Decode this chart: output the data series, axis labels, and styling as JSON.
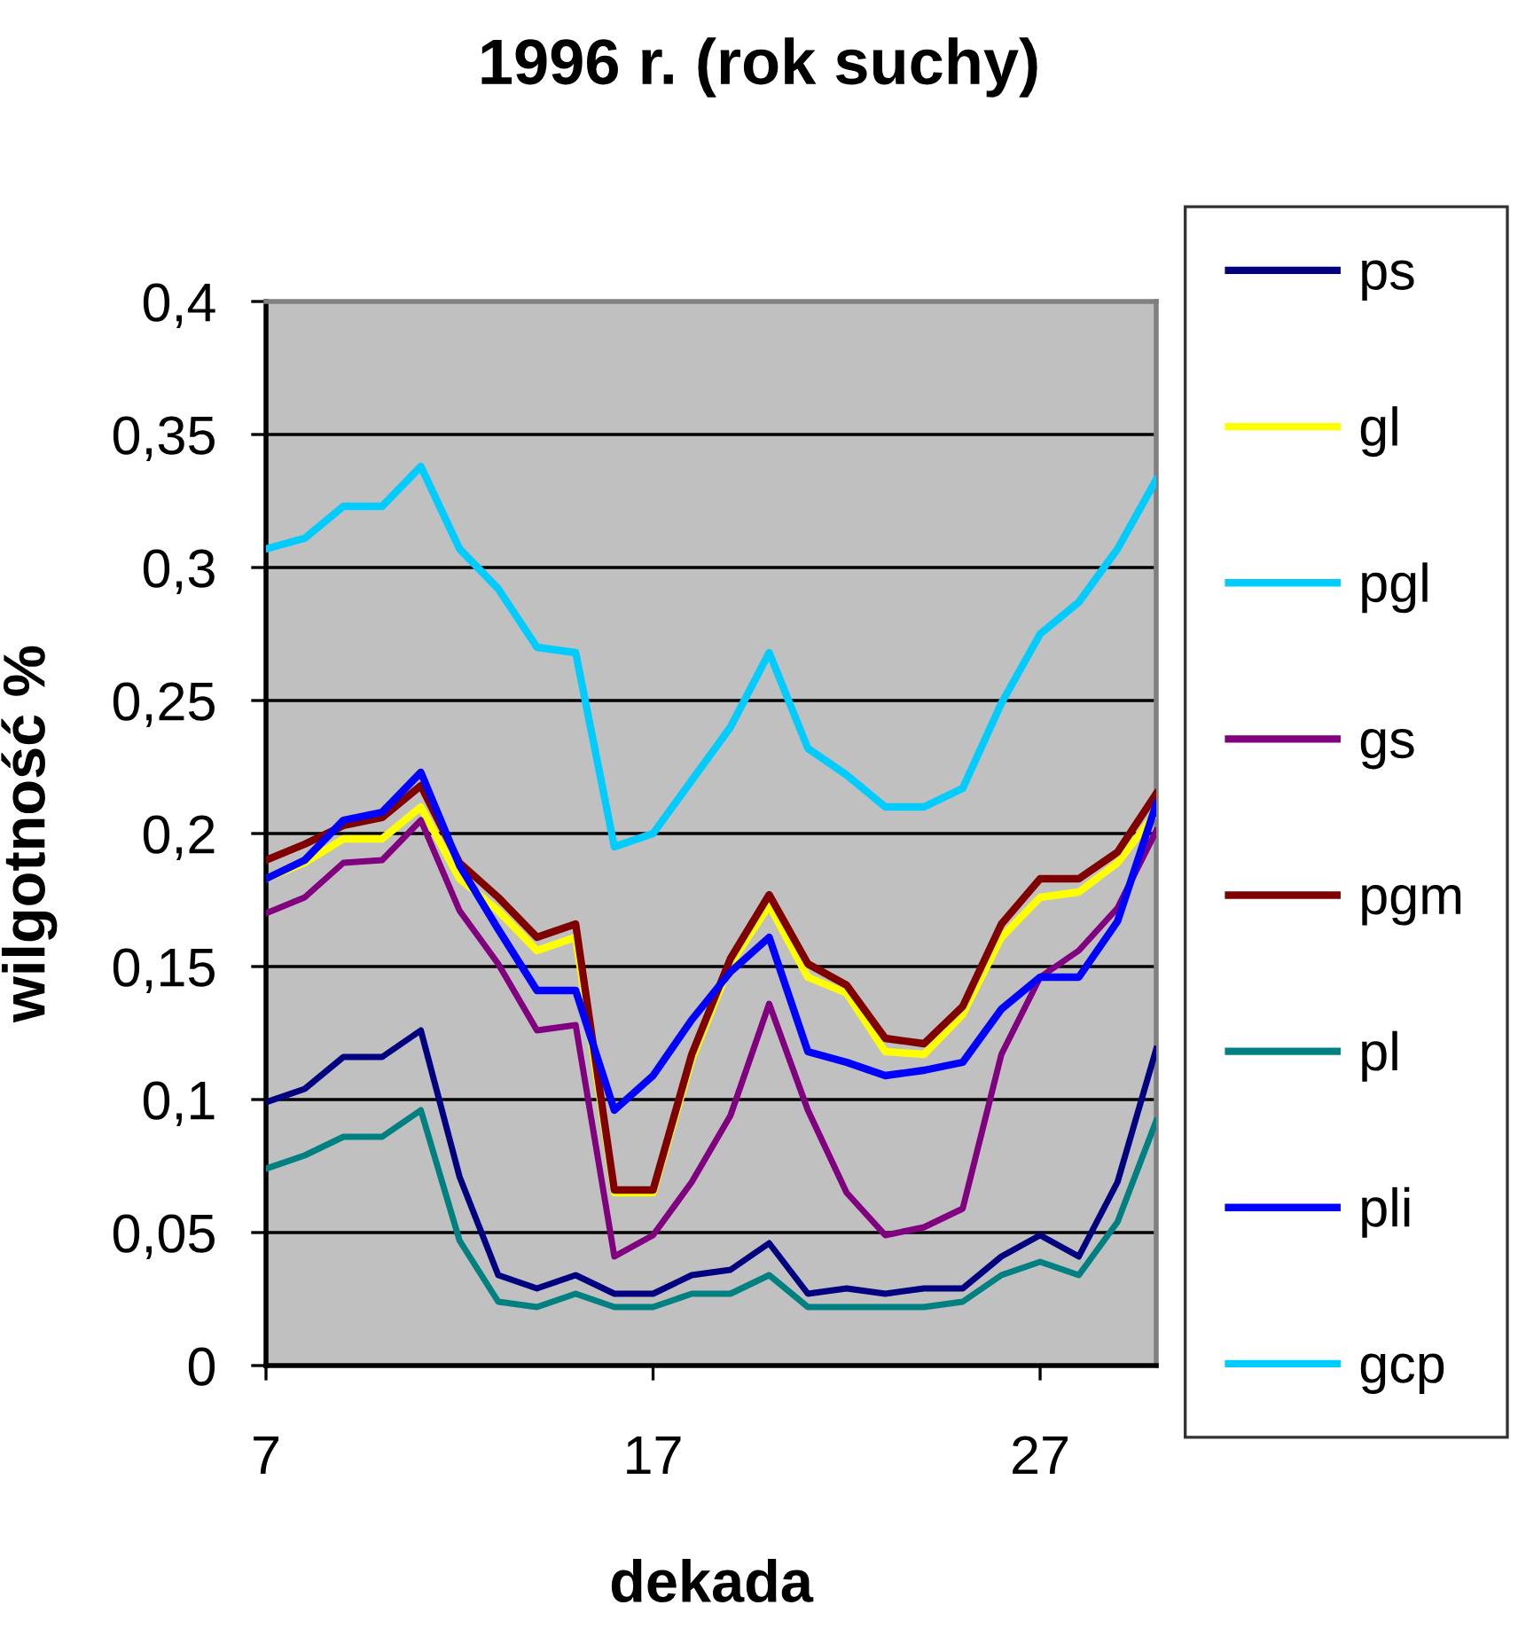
{
  "chart_data": {
    "type": "line",
    "title": "1996 r. (rok suchy)",
    "xlabel": "dekada",
    "ylabel": "wilgotność %",
    "x": [
      7,
      8,
      9,
      10,
      11,
      12,
      13,
      14,
      15,
      16,
      17,
      18,
      19,
      20,
      21,
      22,
      23,
      24,
      25,
      26,
      27,
      28,
      29,
      30
    ],
    "xlim": [
      7,
      30
    ],
    "xticks": [
      7,
      17,
      27
    ],
    "ylim": [
      0,
      0.4
    ],
    "yticks": [
      {
        "value": 0,
        "label": "0"
      },
      {
        "value": 0.05,
        "label": "0,05"
      },
      {
        "value": 0.1,
        "label": "0,1"
      },
      {
        "value": 0.15,
        "label": "0,15"
      },
      {
        "value": 0.2,
        "label": "0,2"
      },
      {
        "value": 0.25,
        "label": "0,25"
      },
      {
        "value": 0.3,
        "label": "0,3"
      },
      {
        "value": 0.35,
        "label": "0,35"
      },
      {
        "value": 0.4,
        "label": "0,4"
      }
    ],
    "grid": "y",
    "legend": "right",
    "marker": "none",
    "line_style": "solid",
    "series": [
      {
        "name": "ps",
        "color": "#000080",
        "values": [
          0.099,
          0.104,
          0.116,
          0.116,
          0.126,
          0.071,
          0.034,
          0.029,
          0.034,
          0.027,
          0.027,
          0.034,
          0.036,
          0.046,
          0.027,
          0.029,
          0.027,
          0.029,
          0.029,
          0.041,
          0.049,
          0.041,
          0.069,
          0.119
        ]
      },
      {
        "name": "gl",
        "color": "#ffff00",
        "values": [
          0.183,
          0.189,
          0.198,
          0.198,
          0.21,
          0.183,
          0.171,
          0.156,
          0.161,
          0.065,
          0.065,
          0.115,
          0.151,
          0.173,
          0.146,
          0.14,
          0.118,
          0.117,
          0.132,
          0.161,
          0.176,
          0.178,
          0.189,
          0.208
        ]
      },
      {
        "name": "pgl",
        "color": "#00ccff",
        "values": [
          0.307,
          0.311,
          0.323,
          0.323,
          0.338,
          0.307,
          0.292,
          0.27,
          0.268,
          0.195,
          0.2,
          0.22,
          0.24,
          0.268,
          0.232,
          0.222,
          0.21,
          0.21,
          0.217,
          0.249,
          0.275,
          0.287,
          0.307,
          0.333
        ]
      },
      {
        "name": "gs",
        "color": "#800080",
        "values": [
          0.17,
          0.176,
          0.189,
          0.19,
          0.205,
          0.171,
          0.151,
          0.126,
          0.128,
          0.041,
          0.049,
          0.069,
          0.094,
          0.136,
          0.096,
          0.065,
          0.049,
          0.052,
          0.059,
          0.117,
          0.146,
          0.156,
          0.172,
          0.201
        ]
      },
      {
        "name": "pgm",
        "color": "#800000",
        "values": [
          0.19,
          0.196,
          0.203,
          0.206,
          0.218,
          0.189,
          0.176,
          0.161,
          0.166,
          0.066,
          0.066,
          0.117,
          0.153,
          0.177,
          0.151,
          0.143,
          0.123,
          0.121,
          0.135,
          0.166,
          0.183,
          0.183,
          0.193,
          0.215
        ]
      },
      {
        "name": "pl",
        "color": "#008080",
        "values": [
          0.074,
          0.079,
          0.086,
          0.086,
          0.096,
          0.047,
          0.024,
          0.022,
          0.027,
          0.022,
          0.022,
          0.027,
          0.027,
          0.034,
          0.022,
          0.022,
          0.022,
          0.022,
          0.024,
          0.034,
          0.039,
          0.034,
          0.054,
          0.092
        ]
      },
      {
        "name": "pli",
        "color": "#0000ff",
        "values": [
          0.183,
          0.19,
          0.205,
          0.208,
          0.223,
          0.188,
          0.164,
          0.141,
          0.141,
          0.096,
          0.109,
          0.13,
          0.148,
          0.161,
          0.118,
          0.114,
          0.109,
          0.111,
          0.114,
          0.134,
          0.146,
          0.146,
          0.167,
          0.211
        ]
      },
      {
        "name": "gcp",
        "color": "#00ccff",
        "values": [
          null,
          null,
          null,
          null,
          null,
          null,
          null,
          null,
          null,
          null,
          null,
          null,
          null,
          null,
          null,
          null,
          null,
          null,
          null,
          null,
          null,
          null,
          null,
          null
        ]
      }
    ]
  }
}
